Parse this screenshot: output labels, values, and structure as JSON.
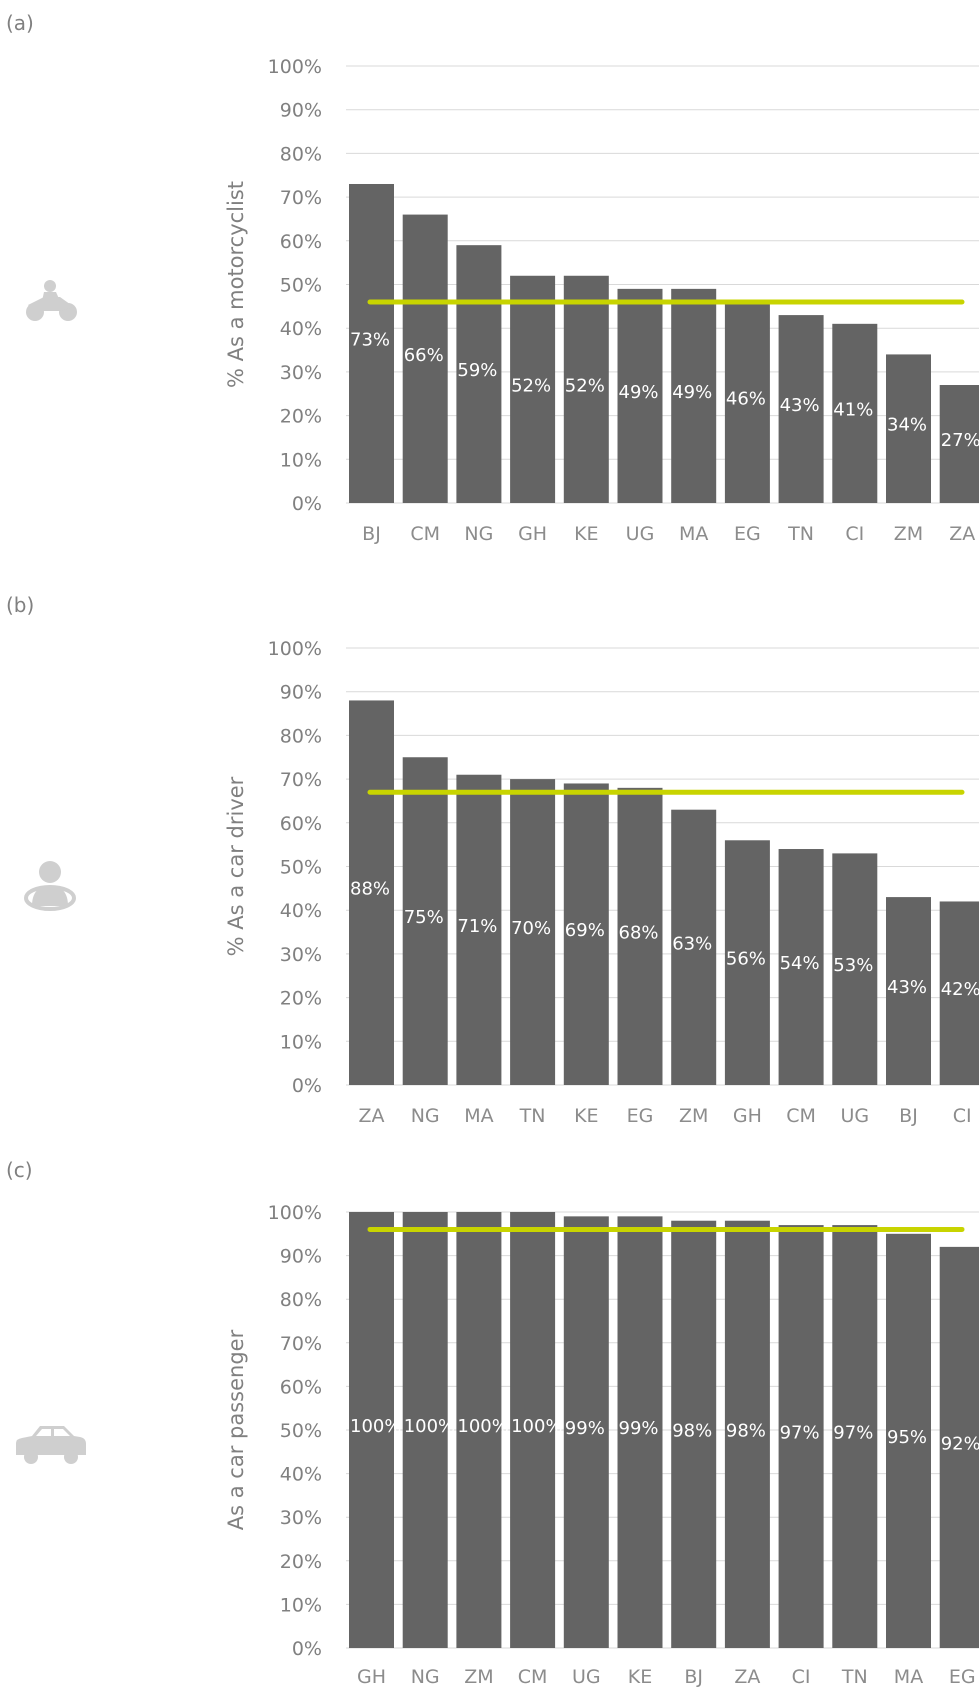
{
  "colors": {
    "bar": "#646464",
    "average_line": "#c8d400",
    "grid": "#d9d9d9",
    "text": "#808080",
    "icon": "#cfcfcf"
  },
  "chart_data": [
    {
      "type": "bar",
      "panel_label": "(a)",
      "icon": "motorcycle-icon",
      "ylabel": "% As a motorcyclist",
      "yticks": [
        "0%",
        "10%",
        "20%",
        "30%",
        "40%",
        "50%",
        "60%",
        "70%",
        "80%",
        "90%",
        "100%"
      ],
      "ylim": [
        0,
        100
      ],
      "categories": [
        "BJ",
        "CM",
        "NG",
        "GH",
        "KE",
        "UG",
        "MA",
        "EG",
        "TN",
        "CI",
        "ZM",
        "ZA"
      ],
      "values": [
        73,
        66,
        59,
        52,
        52,
        49,
        49,
        46,
        43,
        41,
        34,
        27
      ],
      "labels": [
        "73%",
        "66%",
        "59%",
        "52%",
        "52%",
        "49%",
        "49%",
        "46%",
        "43%",
        "41%",
        "34%",
        "27%"
      ],
      "reference_line": 46,
      "grid": true,
      "legend": "none"
    },
    {
      "type": "bar",
      "panel_label": "(b)",
      "icon": "car-driver-icon",
      "ylabel": "% As a car driver",
      "yticks": [
        "0%",
        "10%",
        "20%",
        "30%",
        "40%",
        "50%",
        "60%",
        "70%",
        "80%",
        "90%",
        "100%"
      ],
      "ylim": [
        0,
        100
      ],
      "categories": [
        "ZA",
        "NG",
        "MA",
        "TN",
        "KE",
        "EG",
        "ZM",
        "GH",
        "CM",
        "UG",
        "BJ",
        "CI"
      ],
      "values": [
        88,
        75,
        71,
        70,
        69,
        68,
        63,
        56,
        54,
        53,
        43,
        42
      ],
      "labels": [
        "88%",
        "75%",
        "71%",
        "70%",
        "69%",
        "68%",
        "63%",
        "56%",
        "54%",
        "53%",
        "43%",
        "42%"
      ],
      "reference_line": 67,
      "grid": true,
      "legend": "none"
    },
    {
      "type": "bar",
      "panel_label": "(c)",
      "icon": "car-icon",
      "ylabel": "As a car passenger",
      "yticks": [
        "0%",
        "10%",
        "20%",
        "30%",
        "40%",
        "50%",
        "60%",
        "70%",
        "80%",
        "90%",
        "100%"
      ],
      "ylim": [
        0,
        100
      ],
      "categories": [
        "GH",
        "NG",
        "ZM",
        "CM",
        "UG",
        "KE",
        "BJ",
        "ZA",
        "CI",
        "TN",
        "MA",
        "EG"
      ],
      "values": [
        100,
        100,
        100,
        100,
        99,
        99,
        98,
        98,
        97,
        97,
        95,
        92
      ],
      "labels": [
        "100%",
        "100%",
        "100%",
        "100%",
        "99%",
        "99%",
        "98%",
        "98%",
        "97%",
        "97%",
        "95%",
        "92%"
      ],
      "reference_line": 96,
      "grid": true,
      "legend": "none"
    }
  ]
}
